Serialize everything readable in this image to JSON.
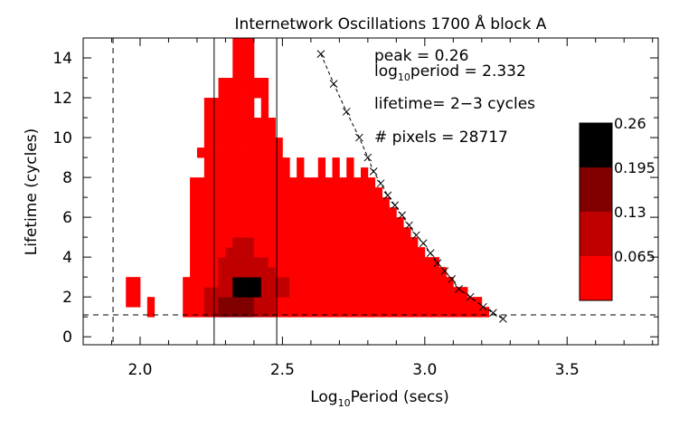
{
  "chart_data": {
    "type": "heatmap",
    "title": "Internetwork Oscillations 1700 Å block A",
    "xlabel": {
      "base": "Log",
      "sub": "10",
      "rest": "Period (secs)"
    },
    "ylabel": "Lifetime (cycles)",
    "xlim": [
      1.8,
      3.82
    ],
    "ylim": [
      -0.4,
      15.0
    ],
    "x_ticks": [
      {
        "value": 2.0,
        "label": "2.0"
      },
      {
        "value": 2.5,
        "label": "2.5"
      },
      {
        "value": 3.0,
        "label": "3.0"
      },
      {
        "value": 3.5,
        "label": "3.5"
      }
    ],
    "y_ticks": [
      {
        "value": 0,
        "label": "0"
      },
      {
        "value": 2,
        "label": "2"
      },
      {
        "value": 4,
        "label": "4"
      },
      {
        "value": 6,
        "label": "6"
      },
      {
        "value": 8,
        "label": "8"
      },
      {
        "value": 10,
        "label": "10"
      },
      {
        "value": 12,
        "label": "12"
      },
      {
        "value": 14,
        "label": "14"
      }
    ],
    "annotations": {
      "peak": "peak = 0.26",
      "logperiod_base": "log",
      "logperiod_sub": "10",
      "logperiod_rest": "period = 2.332",
      "lifetime": "lifetime= 2−3 cycles",
      "pixels": "# pixels = 28717"
    },
    "colorbar": {
      "labels": [
        "0.26",
        "0.195",
        "0.13",
        "0.065"
      ],
      "levels": [
        {
          "color": "#000000",
          "min": 0.195,
          "max": 0.26
        },
        {
          "color": "#800000",
          "min": 0.13,
          "max": 0.195
        },
        {
          "color": "#c00000",
          "min": 0.065,
          "max": 0.13
        },
        {
          "color": "#ff0000",
          "min": 0.0,
          "max": 0.065
        }
      ]
    },
    "heatmap": {
      "x_step": 0.025,
      "y_step": 0.5,
      "columns": [
        {
          "x": 1.95,
          "y0": 1.5,
          "y1": 3.0,
          "gaps": [],
          "levels": []
        },
        {
          "x": 1.975,
          "y0": 1.5,
          "y1": 3.0,
          "gaps": [],
          "levels": []
        },
        {
          "x": 2.025,
          "y0": 1.0,
          "y1": 2.0,
          "gaps": [],
          "levels": []
        },
        {
          "x": 2.15,
          "y0": 1.0,
          "y1": 3.0,
          "gaps": [],
          "levels": []
        },
        {
          "x": 2.175,
          "y0": 1.0,
          "y1": 8.0,
          "gaps": [],
          "levels": []
        },
        {
          "x": 2.2,
          "y0": 1.0,
          "y1": 9.5,
          "gaps": [
            [
              8.0,
              9.0
            ]
          ],
          "levels": []
        },
        {
          "x": 2.225,
          "y0": 1.0,
          "y1": 12.0,
          "gaps": [],
          "levels": [
            [
              1.0,
              2.5,
              1
            ]
          ]
        },
        {
          "x": 2.25,
          "y0": 1.0,
          "y1": 12.0,
          "gaps": [],
          "levels": [
            [
              1.0,
              2.5,
              1
            ]
          ]
        },
        {
          "x": 2.275,
          "y0": 1.0,
          "y1": 13.0,
          "gaps": [],
          "levels": [
            [
              1.0,
              2.0,
              2
            ],
            [
              2.0,
              3.0,
              1
            ],
            [
              3.0,
              4.0,
              1
            ]
          ]
        },
        {
          "x": 2.3,
          "y0": 1.0,
          "y1": 13.0,
          "gaps": [],
          "levels": [
            [
              1.0,
              2.0,
              2
            ],
            [
              2.0,
              3.5,
              1
            ],
            [
              3.5,
              4.5,
              1
            ]
          ]
        },
        {
          "x": 2.325,
          "y0": 1.0,
          "y1": 15.0,
          "gaps": [],
          "levels": [
            [
              1.0,
              2.0,
              2
            ],
            [
              2.0,
              3.0,
              3
            ],
            [
              3.0,
              4.5,
              1
            ],
            [
              4.5,
              5.0,
              1
            ]
          ]
        },
        {
          "x": 2.35,
          "y0": 1.0,
          "y1": 15.0,
          "gaps": [],
          "levels": [
            [
              1.0,
              2.0,
              2
            ],
            [
              2.0,
              3.0,
              3
            ],
            [
              3.0,
              4.5,
              1
            ],
            [
              4.5,
              5.0,
              1
            ]
          ]
        },
        {
          "x": 2.375,
          "y0": 1.0,
          "y1": 15.0,
          "gaps": [],
          "levels": [
            [
              1.0,
              2.0,
              2
            ],
            [
              2.0,
              3.0,
              3
            ],
            [
              3.0,
              4.5,
              1
            ],
            [
              4.5,
              5.0,
              1
            ]
          ]
        },
        {
          "x": 2.4,
          "y0": 1.0,
          "y1": 13.0,
          "gaps": [
            [
              11.0,
              12.0
            ]
          ],
          "levels": [
            [
              1.0,
              2.0,
              1
            ],
            [
              2.0,
              3.0,
              3
            ],
            [
              3.0,
              4.0,
              1
            ]
          ]
        },
        {
          "x": 2.425,
          "y0": 1.0,
          "y1": 13.0,
          "gaps": [],
          "levels": [
            [
              1.0,
              2.5,
              1
            ],
            [
              2.5,
              4.0,
              1
            ]
          ]
        },
        {
          "x": 2.45,
          "y0": 1.0,
          "y1": 11.0,
          "gaps": [],
          "levels": [
            [
              1.0,
              2.5,
              1
            ],
            [
              2.5,
              3.5,
              1
            ]
          ]
        },
        {
          "x": 2.475,
          "y0": 1.0,
          "y1": 10.0,
          "gaps": [],
          "levels": [
            [
              2.0,
              3.0,
              1
            ]
          ]
        },
        {
          "x": 2.5,
          "y0": 1.0,
          "y1": 9.0,
          "gaps": [],
          "levels": [
            [
              2.0,
              3.0,
              1
            ]
          ]
        },
        {
          "x": 2.525,
          "y0": 1.0,
          "y1": 8.0,
          "gaps": [],
          "levels": []
        },
        {
          "x": 2.55,
          "y0": 1.0,
          "y1": 9.0,
          "gaps": [],
          "levels": []
        },
        {
          "x": 2.575,
          "y0": 1.0,
          "y1": 8.0,
          "gaps": [],
          "levels": []
        },
        {
          "x": 2.6,
          "y0": 1.0,
          "y1": 8.0,
          "gaps": [],
          "levels": []
        },
        {
          "x": 2.625,
          "y0": 1.0,
          "y1": 9.0,
          "gaps": [],
          "levels": []
        },
        {
          "x": 2.65,
          "y0": 1.0,
          "y1": 8.0,
          "gaps": [],
          "levels": []
        },
        {
          "x": 2.675,
          "y0": 1.0,
          "y1": 9.0,
          "gaps": [],
          "levels": []
        },
        {
          "x": 2.7,
          "y0": 1.0,
          "y1": 8.0,
          "gaps": [],
          "levels": []
        },
        {
          "x": 2.725,
          "y0": 1.0,
          "y1": 9.0,
          "gaps": [],
          "levels": []
        },
        {
          "x": 2.75,
          "y0": 1.0,
          "y1": 8.0,
          "gaps": [],
          "levels": []
        },
        {
          "x": 2.775,
          "y0": 1.0,
          "y1": 8.5,
          "gaps": [],
          "levels": []
        },
        {
          "x": 2.8,
          "y0": 1.0,
          "y1": 8.0,
          "gaps": [],
          "levels": []
        },
        {
          "x": 2.825,
          "y0": 1.0,
          "y1": 7.5,
          "gaps": [],
          "levels": []
        },
        {
          "x": 2.85,
          "y0": 1.0,
          "y1": 7.0,
          "gaps": [],
          "levels": []
        },
        {
          "x": 2.875,
          "y0": 1.0,
          "y1": 6.5,
          "gaps": [],
          "levels": []
        },
        {
          "x": 2.9,
          "y0": 1.0,
          "y1": 6.0,
          "gaps": [],
          "levels": []
        },
        {
          "x": 2.925,
          "y0": 1.0,
          "y1": 5.5,
          "gaps": [],
          "levels": []
        },
        {
          "x": 2.95,
          "y0": 1.0,
          "y1": 5.0,
          "gaps": [],
          "levels": []
        },
        {
          "x": 2.975,
          "y0": 1.0,
          "y1": 4.5,
          "gaps": [],
          "levels": []
        },
        {
          "x": 3.0,
          "y0": 1.0,
          "y1": 4.0,
          "gaps": [],
          "levels": []
        },
        {
          "x": 3.025,
          "y0": 1.0,
          "y1": 4.0,
          "gaps": [],
          "levels": []
        },
        {
          "x": 3.05,
          "y0": 1.0,
          "y1": 3.5,
          "gaps": [],
          "levels": []
        },
        {
          "x": 3.075,
          "y0": 1.0,
          "y1": 3.0,
          "gaps": [],
          "levels": []
        },
        {
          "x": 3.1,
          "y0": 1.0,
          "y1": 2.5,
          "gaps": [],
          "levels": []
        },
        {
          "x": 3.125,
          "y0": 1.0,
          "y1": 2.5,
          "gaps": [],
          "levels": []
        },
        {
          "x": 3.15,
          "y0": 1.0,
          "y1": 2.0,
          "gaps": [],
          "levels": []
        },
        {
          "x": 3.175,
          "y0": 1.0,
          "y1": 2.0,
          "gaps": [],
          "levels": []
        },
        {
          "x": 3.2,
          "y0": 1.0,
          "y1": 1.5,
          "gaps": [],
          "levels": []
        }
      ]
    },
    "reference_lines": {
      "vertical_solid": [
        2.26,
        2.48
      ],
      "vertical_dashed": [
        1.905
      ],
      "horizontal_dashed": [
        1.1
      ]
    },
    "cutoff_curve": {
      "x": [
        2.635,
        2.68,
        2.725,
        2.77,
        2.8,
        2.82,
        2.845,
        2.87,
        2.895,
        2.92,
        2.945,
        2.97,
        2.995,
        3.02,
        3.045,
        3.07,
        3.095,
        3.12,
        3.16,
        3.205,
        3.24,
        3.275
      ],
      "y": [
        14.2,
        12.7,
        11.3,
        10.0,
        9.0,
        8.3,
        7.7,
        7.1,
        6.6,
        6.1,
        5.6,
        5.1,
        4.7,
        4.2,
        3.7,
        3.3,
        2.9,
        2.4,
        2.0,
        1.5,
        1.2,
        0.9
      ]
    }
  }
}
